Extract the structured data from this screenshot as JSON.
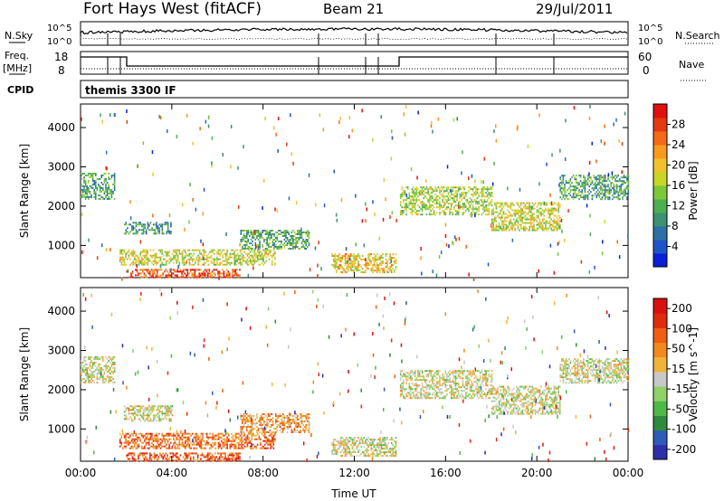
{
  "header": {
    "station": "Fort Hays West (fitACF)",
    "beam": "Beam 21",
    "date": "29/Jul/2011"
  },
  "panels": {
    "sky": {
      "left_label": "N.Sky",
      "right_label": "N.Search",
      "tick_top": "10^5",
      "tick_bottom": "10^0"
    },
    "freq": {
      "left_label_top": "Freq.",
      "left_label_bottom": "[MHz]",
      "right_label": "Nave",
      "left_tick_top": "18",
      "left_tick_bottom": "8",
      "right_tick_top": "60",
      "right_tick_bottom": "0"
    },
    "cpid": {
      "label": "CPID",
      "text": "themis 3300 IF"
    }
  },
  "chart_data": [
    {
      "type": "heatmap",
      "title": "",
      "xlabel": "Time UT",
      "ylabel": "Slant Range [km]",
      "xlim": [
        0,
        24
      ],
      "ylim": [
        180,
        4600
      ],
      "yticks": [
        "1000",
        "2000",
        "3000",
        "4000"
      ],
      "xticks": [
        "00:00",
        "04:00",
        "08:00",
        "12:00",
        "16:00",
        "20:00",
        "00:00"
      ],
      "colorbar": {
        "label": "Power [dB]",
        "ticks": [
          "4",
          "8",
          "12",
          "16",
          "20",
          "24",
          "28"
        ],
        "colors": [
          "#0a1fd6",
          "#1f53c8",
          "#2f6fa8",
          "#3e9273",
          "#4fae52",
          "#7cc83a",
          "#c8d626",
          "#f2c12e",
          "#f79a1f",
          "#f36b16",
          "#e43a10",
          "#e01010"
        ]
      },
      "bands": [
        {
          "t0": 0.0,
          "t1": 1.5,
          "r0": 2200,
          "r1": 2850,
          "level": 0.35
        },
        {
          "t0": 1.9,
          "t1": 4.0,
          "r0": 1300,
          "r1": 1600,
          "level": 0.3
        },
        {
          "t0": 1.7,
          "t1": 8.5,
          "r0": 500,
          "r1": 900,
          "level": 0.55
        },
        {
          "t0": 2.0,
          "t1": 7.0,
          "r0": 200,
          "r1": 400,
          "level": 0.85
        },
        {
          "t0": 7.0,
          "t1": 10.0,
          "r0": 900,
          "r1": 1400,
          "level": 0.35
        },
        {
          "t0": 11.0,
          "t1": 13.8,
          "r0": 300,
          "r1": 800,
          "level": 0.6
        },
        {
          "t0": 14.0,
          "t1": 18.0,
          "r0": 1800,
          "r1": 2500,
          "level": 0.5
        },
        {
          "t0": 18.0,
          "t1": 21.0,
          "r0": 1400,
          "r1": 2100,
          "level": 0.55
        },
        {
          "t0": 21.0,
          "t1": 24.0,
          "r0": 2200,
          "r1": 2800,
          "level": 0.35
        }
      ]
    },
    {
      "type": "heatmap",
      "title": "",
      "xlabel": "Time UT",
      "ylabel": "Slant Range [km]",
      "xlim": [
        0,
        24
      ],
      "ylim": [
        180,
        4600
      ],
      "yticks": [
        "1000",
        "2000",
        "3000",
        "4000"
      ],
      "xticks": [
        "00:00",
        "04:00",
        "08:00",
        "12:00",
        "16:00",
        "20:00",
        "00:00"
      ],
      "colorbar": {
        "label": "Velocity [m s^-1]",
        "ticks": [
          "200",
          "100",
          "50",
          "15",
          "-15",
          "-50",
          "-100",
          "-200"
        ],
        "colors": [
          "#2b2fa8",
          "#2e5ab8",
          "#2f8a3e",
          "#4fb84a",
          "#8fd16b",
          "#c8c8c8",
          "#f0b43c",
          "#f08a1e",
          "#ee5f12",
          "#e02c0e",
          "#d91010"
        ]
      },
      "bands": [
        {
          "t0": 0.0,
          "t1": 1.5,
          "r0": 2200,
          "r1": 2850,
          "level": 0.5
        },
        {
          "t0": 1.9,
          "t1": 4.0,
          "r0": 1200,
          "r1": 1600,
          "level": 0.5
        },
        {
          "t0": 1.7,
          "t1": 8.5,
          "r0": 500,
          "r1": 900,
          "level": 0.75
        },
        {
          "t0": 2.0,
          "t1": 7.0,
          "r0": 200,
          "r1": 400,
          "level": 0.8
        },
        {
          "t0": 7.0,
          "t1": 10.0,
          "r0": 900,
          "r1": 1400,
          "level": 0.65
        },
        {
          "t0": 11.0,
          "t1": 13.8,
          "r0": 300,
          "r1": 800,
          "level": 0.5
        },
        {
          "t0": 14.0,
          "t1": 18.0,
          "r0": 1800,
          "r1": 2500,
          "level": 0.5
        },
        {
          "t0": 18.0,
          "t1": 21.0,
          "r0": 1400,
          "r1": 2100,
          "level": 0.5
        },
        {
          "t0": 21.0,
          "t1": 24.0,
          "r0": 2200,
          "r1": 2800,
          "level": 0.5
        }
      ]
    }
  ]
}
